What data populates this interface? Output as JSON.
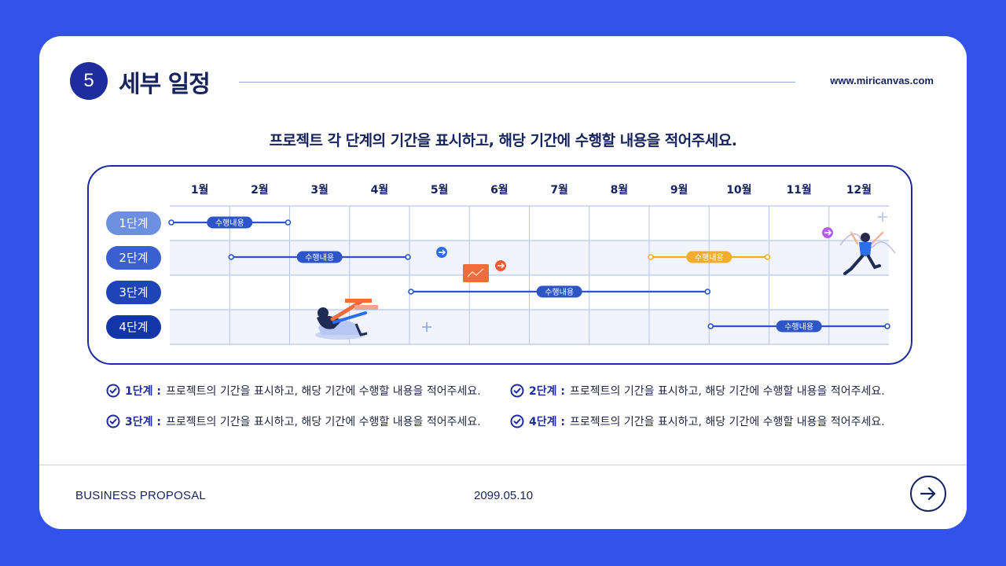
{
  "header": {
    "section_number": "5",
    "title": "세부 일정",
    "site_url": "www.miricanvas.com"
  },
  "subtitle": "프로젝트 각 단계의 기간을 표시하고, 해당 기간에 수행할 내용을 적어주세요.",
  "chart_data": {
    "type": "table",
    "months": [
      "1월",
      "2월",
      "3월",
      "4월",
      "5월",
      "6월",
      "7월",
      "8월",
      "9월",
      "10월",
      "11월",
      "12월"
    ],
    "stages": [
      {
        "label": "1단계",
        "color": "#6d8fe0"
      },
      {
        "label": "2단계",
        "color": "#3a5fd0"
      },
      {
        "label": "3단계",
        "color": "#1f44b8"
      },
      {
        "label": "4단계",
        "color": "#1235a8"
      }
    ],
    "bars": [
      {
        "stage": 0,
        "start_month": 1,
        "end_month": 2,
        "label": "수행내용",
        "color": "#2d55c8"
      },
      {
        "stage": 1,
        "start_month": 2,
        "end_month": 4,
        "label": "수행내용",
        "color": "#2d55c8"
      },
      {
        "stage": 1,
        "start_month": 9,
        "end_month": 10,
        "label": "수행내용",
        "color": "#f2ad2e"
      },
      {
        "stage": 2,
        "start_month": 5,
        "end_month": 9,
        "label": "수행내용",
        "color": "#2d55c8"
      },
      {
        "stage": 3,
        "start_month": 10,
        "end_month": 12,
        "label": "수행내용",
        "color": "#2d55c8"
      }
    ]
  },
  "legend": [
    {
      "label": "1단계 :",
      "text": "프로젝트의 기간을 표시하고, 해당 기간에 수행할 내용을 적어주세요."
    },
    {
      "label": "2단계 :",
      "text": "프로젝트의 기간을 표시하고, 해당 기간에 수행할 내용을 적어주세요."
    },
    {
      "label": "3단계 :",
      "text": "프로젝트의 기간을 표시하고, 해당 기간에 수행할 내용을 적어주세요."
    },
    {
      "label": "4단계 :",
      "text": "프로젝트의 기간을 표시하고, 해당 기간에 수행할 내용을 적어주세요."
    }
  ],
  "footer": {
    "left": "BUSINESS PROPOSAL",
    "date": "2099.05.10"
  },
  "icons": {
    "next": "arrow-right-circle-icon",
    "check": "check-circle-icon"
  }
}
